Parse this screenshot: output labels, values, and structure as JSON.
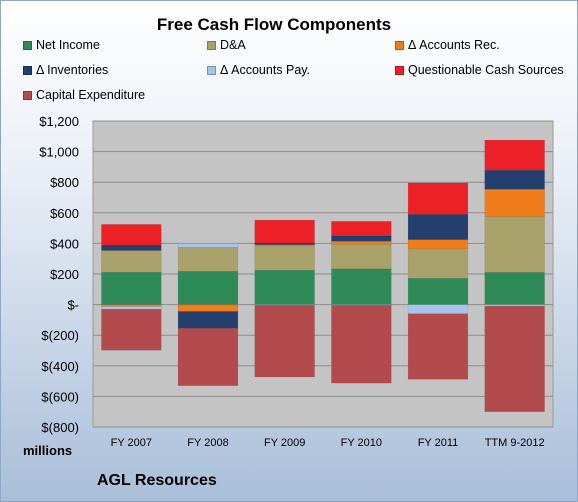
{
  "chart_data": {
    "type": "bar",
    "stacked": true,
    "title": "Free Cash Flow Components",
    "categories": [
      "FY 2007",
      "FY 2008",
      "FY 2009",
      "FY 2010",
      "FY 2011",
      "TTM 9-2012"
    ],
    "ylim": [
      -800,
      1200
    ],
    "yticks": [
      -800,
      -600,
      -400,
      -200,
      0,
      200,
      400,
      600,
      800,
      1000,
      1200
    ],
    "ytick_labels": [
      "$(800)",
      "$(600)",
      "$(400)",
      "$(200)",
      "$-",
      "$200",
      "$400",
      "$600",
      "$800",
      "$1,000",
      "$1,200"
    ],
    "units_label": "millions",
    "grid": true,
    "legend_position": "top",
    "series": [
      {
        "name": "Net Income",
        "color": "#2e8b57",
        "values": [
          212,
          218,
          225,
          234,
          172,
          211
        ]
      },
      {
        "name": "D&A",
        "color": "#a8a26a",
        "values": [
          142,
          157,
          162,
          160,
          193,
          365
        ]
      },
      {
        "name": "Δ Accounts Rec.",
        "color": "#f07c1a",
        "values": [
          -12,
          -45,
          5,
          20,
          60,
          178
        ]
      },
      {
        "name": "Δ Inventories",
        "color": "#243f6e",
        "values": [
          35,
          -110,
          10,
          35,
          165,
          125
        ]
      },
      {
        "name": "Δ Accounts Pay.",
        "color": "#a9c4ea",
        "values": [
          -18,
          25,
          -5,
          -5,
          -60,
          -10
        ]
      },
      {
        "name": "Questionable Cash Sources",
        "color": "#ec2027",
        "values": [
          135,
          0,
          150,
          95,
          205,
          196
        ]
      },
      {
        "name": "Capital Expenditure",
        "color": "#b34a4d",
        "values": [
          -268,
          -375,
          -468,
          -508,
          -428,
          -690
        ]
      }
    ]
  },
  "company": "AGL Resources"
}
